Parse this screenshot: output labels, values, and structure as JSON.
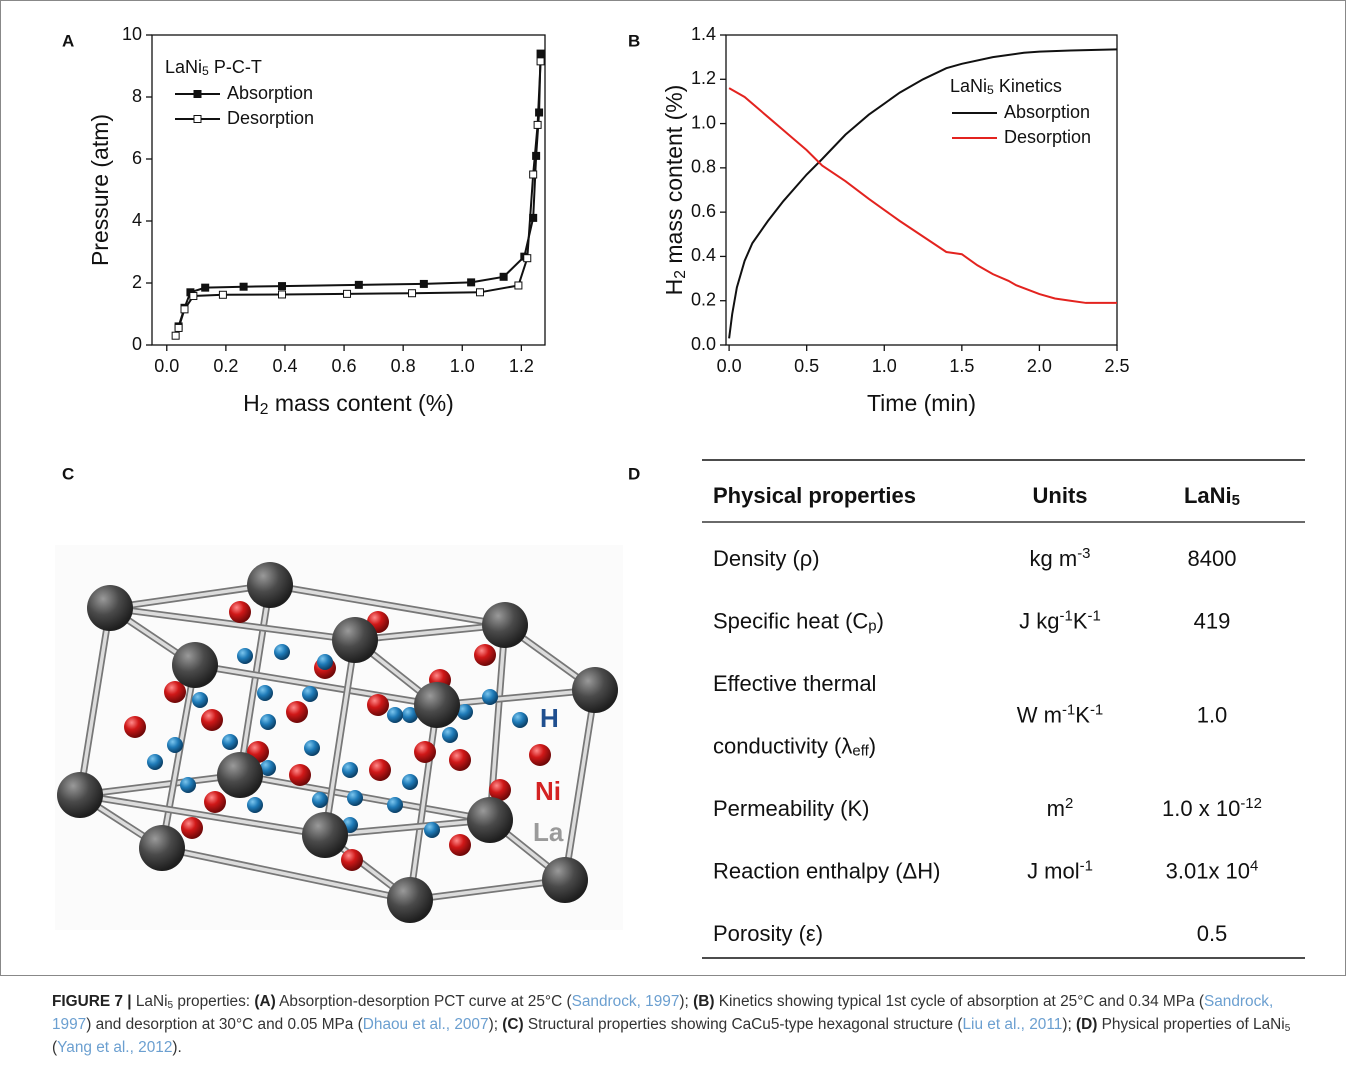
{
  "chart_data": [
    {
      "type": "line",
      "panel": "A",
      "legend": "upper left",
      "legend_title": [
        {
          "text": "LaNi"
        },
        {
          "sub": "5"
        },
        {
          "text": " P-C-T"
        }
      ],
      "x_label": [
        {
          "text": "H"
        },
        {
          "sub": "2"
        },
        {
          "text": " mass content (%)"
        }
      ],
      "y_label": "Pressure (atm)",
      "xlim": [
        -0.05,
        1.28
      ],
      "ylim": [
        0,
        10
      ],
      "xticks": [
        {
          "value": 0,
          "label": "0.0"
        },
        0.2,
        0.4,
        0.6,
        0.8,
        {
          "value": 1,
          "label": "1.0"
        },
        1.2
      ],
      "yticks": [
        0,
        2,
        4,
        6,
        8,
        10
      ],
      "series": [
        {
          "name": "Absorption",
          "color": "#111111",
          "marker": "filled-square",
          "x": [
            0.04,
            0.06,
            0.08,
            0.13,
            0.26,
            0.39,
            0.65,
            0.87,
            1.03,
            1.14,
            1.21,
            1.24,
            1.25,
            1.26,
            1.265
          ],
          "values": [
            0.6,
            1.2,
            1.7,
            1.85,
            1.88,
            1.9,
            1.94,
            1.97,
            2.02,
            2.2,
            2.85,
            4.1,
            6.1,
            7.5,
            9.4
          ]
        },
        {
          "name": "Desorption",
          "color": "#111111",
          "marker": "open-square",
          "x": [
            0.03,
            0.04,
            0.06,
            0.09,
            0.19,
            0.39,
            0.61,
            0.83,
            1.06,
            1.19,
            1.22,
            1.24,
            1.255,
            1.265
          ],
          "values": [
            0.3,
            0.55,
            1.15,
            1.58,
            1.62,
            1.63,
            1.65,
            1.67,
            1.7,
            1.92,
            2.8,
            5.5,
            7.1,
            9.15
          ]
        }
      ]
    },
    {
      "type": "line",
      "panel": "B",
      "legend": "upper right",
      "legend_title": [
        {
          "text": "LaNi"
        },
        {
          "sub": "5"
        },
        {
          "text": " Kinetics"
        }
      ],
      "x_label": "Time (min)",
      "y_label": [
        {
          "text": "H"
        },
        {
          "sub": "2"
        },
        {
          "text": " mass content (%)"
        }
      ],
      "xlim": [
        -0.02,
        2.5
      ],
      "ylim": [
        0,
        1.4
      ],
      "xticks": [
        {
          "value": 0,
          "label": "0.0"
        },
        0.5,
        {
          "value": 1,
          "label": "1.0"
        },
        1.5,
        {
          "value": 2,
          "label": "2.0"
        },
        2.5
      ],
      "yticks": [
        {
          "value": 0,
          "label": "0.0"
        },
        0.2,
        0.4,
        0.6,
        0.8,
        {
          "value": 1,
          "label": "1.0"
        },
        1.2,
        1.4
      ],
      "series": [
        {
          "name": "Absorption",
          "color": "#111111",
          "x": [
            0,
            0.02,
            0.05,
            0.1,
            0.15,
            0.25,
            0.35,
            0.5,
            0.6,
            0.75,
            0.9,
            1.0,
            1.1,
            1.25,
            1.4,
            1.5,
            1.7,
            1.9,
            2.0,
            2.2,
            2.5
          ],
          "values": [
            0.03,
            0.14,
            0.26,
            0.38,
            0.46,
            0.56,
            0.65,
            0.77,
            0.84,
            0.95,
            1.04,
            1.09,
            1.14,
            1.2,
            1.25,
            1.27,
            1.3,
            1.32,
            1.325,
            1.33,
            1.335
          ]
        },
        {
          "name": "Desorption",
          "color": "#e3231f",
          "x": [
            0,
            0.1,
            0.25,
            0.4,
            0.5,
            0.6,
            0.75,
            0.9,
            1.0,
            1.1,
            1.25,
            1.4,
            1.5,
            1.6,
            1.7,
            1.8,
            1.85,
            2.0,
            2.1,
            2.2,
            2.3,
            2.5
          ],
          "values": [
            1.16,
            1.12,
            1.03,
            0.94,
            0.88,
            0.81,
            0.74,
            0.66,
            0.61,
            0.56,
            0.49,
            0.42,
            0.41,
            0.36,
            0.32,
            0.29,
            0.27,
            0.23,
            0.21,
            0.2,
            0.19,
            0.19
          ]
        }
      ]
    }
  ],
  "panel_c": {
    "panel": "C",
    "labels": [
      "H",
      "Ni",
      "La"
    ]
  },
  "table": {
    "panel": "D",
    "header": [
      [
        [
          {
            "text": "Physical properties"
          }
        ]
      ],
      [
        [
          {
            "text": "Units"
          }
        ]
      ],
      [
        [
          {
            "text": "LaNi"
          },
          {
            "sub": "5"
          }
        ]
      ]
    ],
    "rows": [
      [
        [
          [
            {
              "text": "Density (ρ)"
            }
          ]
        ],
        [
          [
            {
              "text": "kg m"
            },
            {
              "sup": "-3"
            }
          ]
        ],
        [
          [
            {
              "text": "8400"
            }
          ]
        ]
      ],
      [
        [
          [
            {
              "text": "Specific heat (C"
            },
            {
              "sub": "p"
            },
            {
              "text": ")"
            }
          ]
        ],
        [
          [
            {
              "text": "J kg"
            },
            {
              "sup": "-1"
            },
            {
              "text": "K"
            },
            {
              "sup": "-1"
            }
          ]
        ],
        [
          [
            {
              "text": "419"
            }
          ]
        ]
      ],
      [
        [
          [
            {
              "text": "Effective thermal"
            }
          ],
          [
            {
              "text": "conductivity (λ"
            },
            {
              "sub": "eff"
            },
            {
              "text": ")"
            }
          ]
        ],
        [
          [
            {
              "text": "W m"
            },
            {
              "sup": "-1"
            },
            {
              "text": "K"
            },
            {
              "sup": "-1"
            }
          ]
        ],
        [
          [
            {
              "text": "1.0"
            }
          ]
        ]
      ],
      [
        [
          [
            {
              "text": "Permeability (K)"
            }
          ]
        ],
        [
          [
            {
              "text": "m"
            },
            {
              "sup": "2"
            }
          ]
        ],
        [
          [
            {
              "text": "1.0 x 10"
            },
            {
              "sup": "-12"
            }
          ]
        ]
      ],
      [
        [
          [
            {
              "text": "Reaction enthalpy (ΔH)"
            }
          ]
        ],
        [
          [
            {
              "text": "J mol"
            },
            {
              "sup": "-1"
            }
          ]
        ],
        [
          [
            {
              "text": "3.01x 10"
            },
            {
              "sup": "4"
            }
          ]
        ]
      ],
      [
        [
          [
            {
              "text": "Porosity (ε)"
            }
          ]
        ],
        [],
        [
          [
            {
              "text": "0.5"
            }
          ]
        ]
      ]
    ]
  },
  "caption": [
    {
      "bold": "FIGURE 7 |"
    },
    {
      "text": " LaNi"
    },
    {
      "sub": "5"
    },
    {
      "text": " properties: "
    },
    {
      "bold": "(A)"
    },
    {
      "text": " Absorption-desorption PCT curve at 25°C ("
    },
    {
      "link": "Sandrock, 1997"
    },
    {
      "text": "); "
    },
    {
      "bold": "(B)"
    },
    {
      "text": " Kinetics showing typical 1st cycle of absorption at 25°C and 0.34 MPa ("
    },
    {
      "link": "Sandrock, 1997"
    },
    {
      "text": ") and desorption at 30°C and 0.05 MPa ("
    },
    {
      "link": "Dhaou et al., 2007"
    },
    {
      "text": "); "
    },
    {
      "bold": "(C)"
    },
    {
      "text": " Structural properties showing CaCu5-type hexagonal structure ("
    },
    {
      "link": "Liu et al., 2011"
    },
    {
      "text": "); "
    },
    {
      "bold": "(D)"
    },
    {
      "text": " Physical properties of LaNi"
    },
    {
      "sub": "5"
    },
    {
      "text": " ("
    },
    {
      "link": "Yang et al., 2012"
    },
    {
      "text": ")."
    }
  ]
}
